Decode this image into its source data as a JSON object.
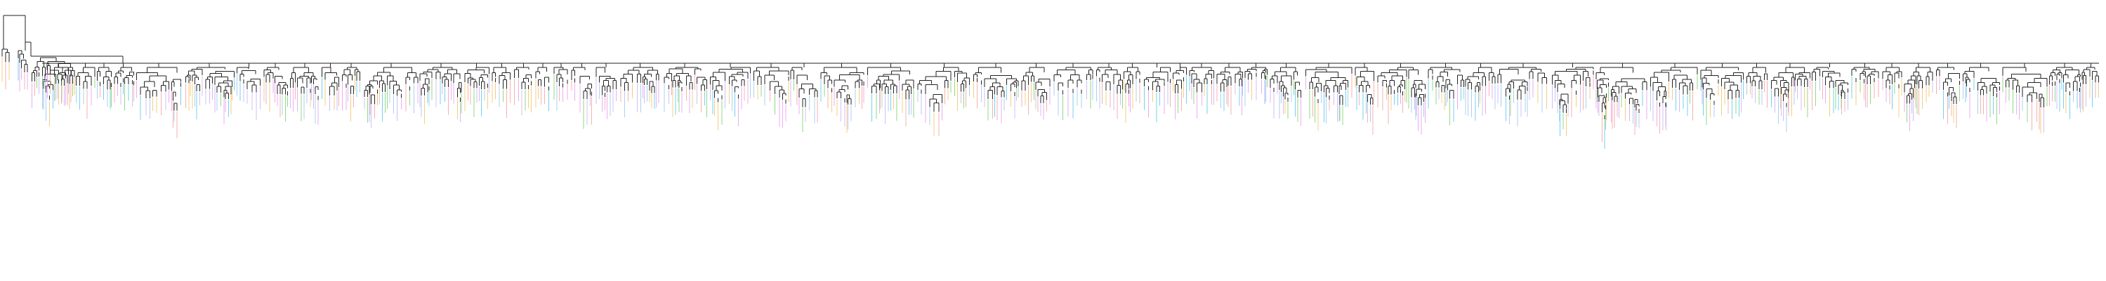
{
  "diagram": {
    "type": "dendrogram",
    "orientation": "top-down",
    "background_color": "#ffffff",
    "branch_color": "#222222",
    "leaf_label_text_legible": false,
    "leaf_count_approx": 540,
    "leaf_group_colors": [
      "#f4a3a3",
      "#f2c46b",
      "#7fd36b",
      "#5cc8f0",
      "#e79ff0",
      "#c8b4f2",
      "#9fc7ef"
    ]
  }
}
